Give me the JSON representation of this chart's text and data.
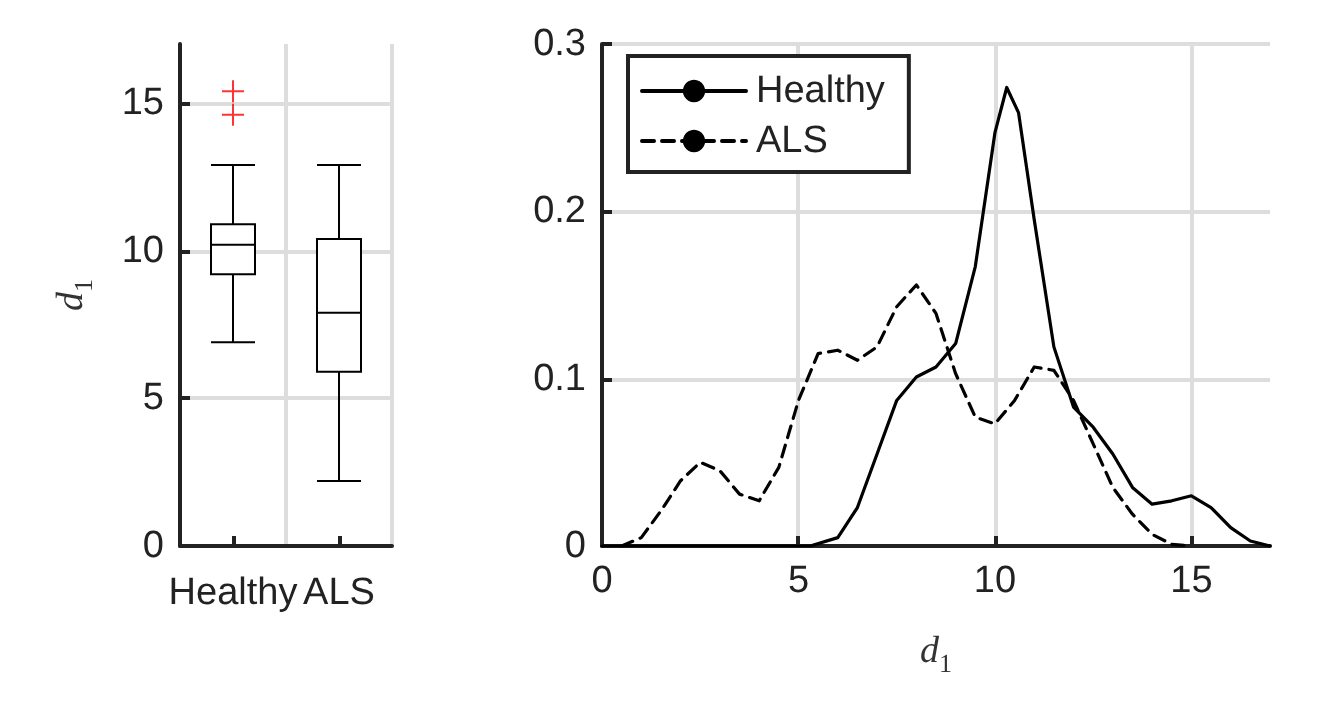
{
  "chart_data": [
    {
      "type": "box",
      "categories": [
        "Healthy",
        "ALS"
      ],
      "ylabel": "d$_{1}$",
      "ylim": [
        0,
        17
      ],
      "yticks": [
        0,
        5,
        10,
        15
      ],
      "grid": true,
      "series": [
        {
          "color": "#000000",
          "boxes": [
            {
              "low": 6.9,
              "q1": 9.2,
              "median": 10.2,
              "q3": 10.9,
              "high": 12.9,
              "outliers": [
                14.6,
                15.4
              ]
            },
            {
              "low": 2.2,
              "q1": 5.9,
              "median": 7.9,
              "q3": 10.4,
              "high": 12.9
            }
          ]
        }
      ]
    },
    {
      "type": "line",
      "xlabel": "d$_{1}$",
      "xlim": [
        0,
        17
      ],
      "xticks": [
        0,
        5,
        10,
        15
      ],
      "ylim": [
        0,
        0.3
      ],
      "yticks": [
        0,
        0.1,
        0.2,
        0.3
      ],
      "grid": true,
      "legend": "top left",
      "marker": "none",
      "series": [
        {
          "name": "Healthy",
          "color": "#000000",
          "line_style": "solid",
          "x": [
            0,
            5,
            5.3,
            6,
            6.5,
            7,
            7.5,
            8,
            8.5,
            9,
            9.5,
            10,
            10.3,
            10.6,
            11,
            11.5,
            12,
            12.5,
            13,
            13.5,
            14,
            14.5,
            15,
            15.5,
            16,
            16.5,
            17
          ],
          "values": [
            0,
            0,
            0,
            0.005,
            0.023,
            0.055,
            0.087,
            0.101,
            0.107,
            0.121,
            0.167,
            0.247,
            0.274,
            0.259,
            0.195,
            0.119,
            0.083,
            0.071,
            0.055,
            0.035,
            0.025,
            0.027,
            0.03,
            0.023,
            0.011,
            0.003,
            0
          ]
        },
        {
          "name": "ALS",
          "color": "#000000",
          "line_style": "dashed",
          "x": [
            0.5,
            1,
            1.5,
            2,
            2.5,
            3,
            3.5,
            4,
            4.5,
            5,
            5.5,
            6,
            6.5,
            7,
            7.5,
            8,
            8.5,
            9,
            9.5,
            10,
            10.5,
            11,
            11.5,
            12,
            12.5,
            13,
            13.5,
            14,
            14.5,
            15
          ],
          "values": [
            0,
            0.005,
            0.021,
            0.039,
            0.05,
            0.045,
            0.031,
            0.027,
            0.047,
            0.087,
            0.115,
            0.117,
            0.111,
            0.119,
            0.143,
            0.156,
            0.139,
            0.103,
            0.077,
            0.073,
            0.087,
            0.107,
            0.105,
            0.087,
            0.061,
            0.035,
            0.019,
            0.007,
            0.001,
            0
          ]
        }
      ]
    }
  ]
}
